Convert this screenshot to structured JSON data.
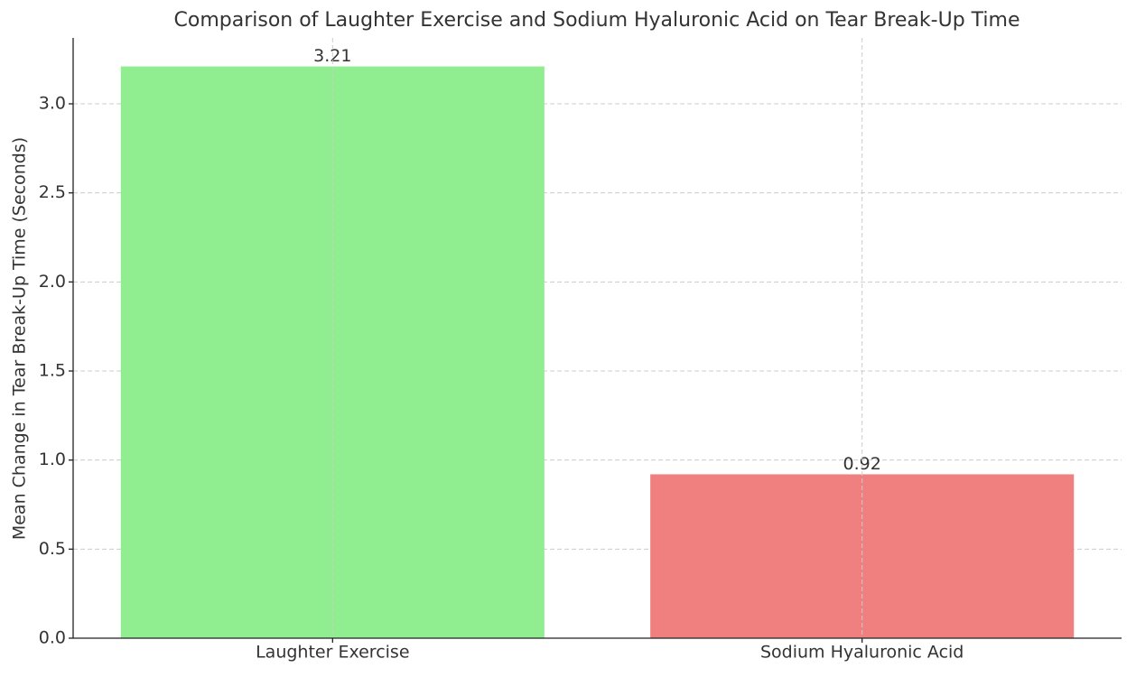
{
  "chart_data": {
    "type": "bar",
    "title": "Comparison of Laughter Exercise and Sodium Hyaluronic Acid on Tear Break-Up Time",
    "y_label": "Mean Change in Tear Break-Up Time (Seconds)",
    "categories": [
      "Laughter Exercise",
      "Sodium Hyaluronic Acid"
    ],
    "values": [
      3.21,
      0.92
    ],
    "colors": [
      "#90ee90",
      "#f08080"
    ],
    "ylim": [
      0,
      3.37
    ],
    "yticks": [
      {
        "value": 0,
        "label": "0.0"
      },
      0.5,
      {
        "value": 1,
        "label": "1.0"
      },
      1.5,
      {
        "value": 2,
        "label": "2.0"
      },
      2.5,
      {
        "value": 3,
        "label": "3.0"
      }
    ],
    "grid": true
  }
}
